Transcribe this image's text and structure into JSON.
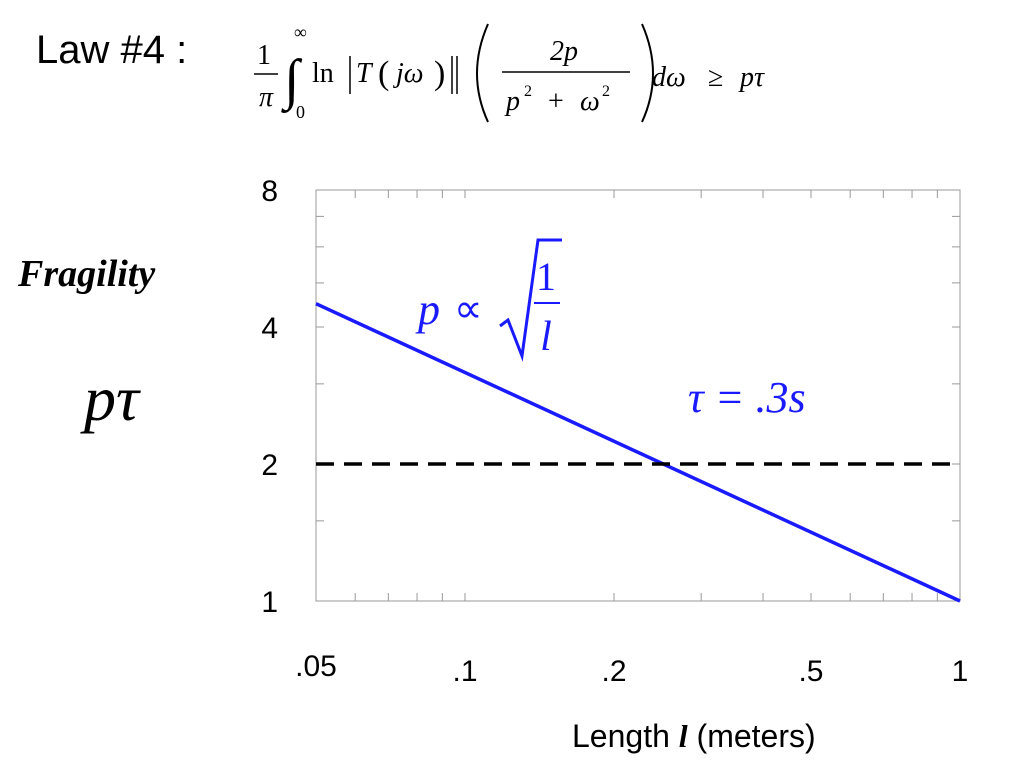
{
  "header": {
    "law_label": "Law #4 :"
  },
  "formula": {
    "pre_one": "1",
    "pre_pi": "π",
    "int_upper": "∞",
    "int_lower": "0",
    "ln": "ln",
    "T": "T",
    "jw": "jω",
    "num": "2p",
    "den_p": "p",
    "den_plus": "+",
    "den_w": "ω",
    "sq": "2",
    "dw": "dω",
    "geq": "≥",
    "rhs": "pτ"
  },
  "ylabel": {
    "word": "Fragility",
    "symbol": "pτ"
  },
  "xlabel": {
    "prefix": "Length",
    "var": "l",
    "suffix": "(meters)"
  },
  "annotations": {
    "prop_p": "p",
    "prop_sym": "∝",
    "prop_num": "1",
    "prop_den": "l",
    "tau": "τ = .3s"
  },
  "colors": {
    "line": "#1a1aff",
    "dashed": "#000000",
    "annotation": "#1a1aff"
  },
  "chart_data": {
    "type": "line",
    "x_scale": "log",
    "y_scale": "log",
    "xlim": [
      0.05,
      1
    ],
    "ylim": [
      1,
      8
    ],
    "x_ticks": [
      {
        "value": 0.05,
        "label": ".05"
      },
      {
        "value": 0.1,
        "label": ".1"
      },
      {
        "value": 0.2,
        "label": ".2"
      },
      {
        "value": 0.5,
        "label": ".5"
      },
      {
        "value": 1,
        "label": "1"
      }
    ],
    "y_ticks": [
      {
        "value": 1,
        "label": "1"
      },
      {
        "value": 2,
        "label": "2"
      },
      {
        "value": 4,
        "label": "4"
      },
      {
        "value": 8,
        "label": "8"
      }
    ],
    "series": [
      {
        "style": "solid",
        "x": [
          0.05,
          1
        ],
        "y": [
          4.5,
          1
        ]
      },
      {
        "style": "dashed",
        "x": [
          0.05,
          1
        ],
        "y": [
          2,
          2
        ]
      }
    ]
  }
}
